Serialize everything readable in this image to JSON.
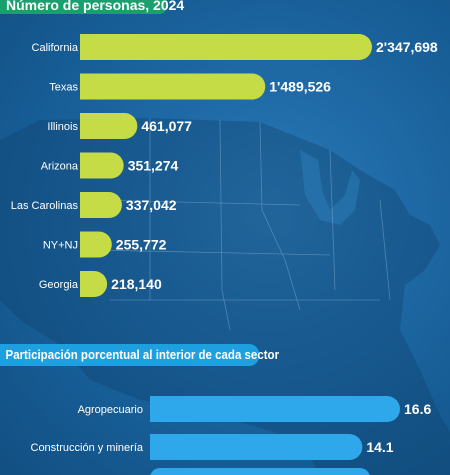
{
  "header1": "Número de personas, 2024",
  "header2": "Participación porcentual al interior de cada sector",
  "colors": {
    "bar1": "#c6dc46",
    "bar2": "#2ea8ea",
    "background": "#1f6aa6",
    "header1_bg": "#1aa06f",
    "header2_bg": "#1ea0e0"
  },
  "chart_data": [
    {
      "type": "bar",
      "orientation": "horizontal",
      "title": "Número de personas, 2024",
      "categories": [
        "California",
        "Texas",
        "Illinois",
        "Arizona",
        "Las Carolinas",
        "NY+NJ",
        "Georgia"
      ],
      "values": [
        2347698,
        1489526,
        461077,
        351274,
        337042,
        255772,
        218140
      ],
      "value_labels": [
        "2'347,698",
        "1'489,526",
        "461,077",
        "351,274",
        "337,042",
        "255,772",
        "218,140"
      ]
    },
    {
      "type": "bar",
      "orientation": "horizontal",
      "title": "Participación porcentual al interior de cada sector",
      "categories": [
        "Agropecuario",
        "Construcción y minería"
      ],
      "values": [
        16.6,
        14.1
      ],
      "value_labels": [
        "16.6",
        "14.1"
      ]
    }
  ]
}
